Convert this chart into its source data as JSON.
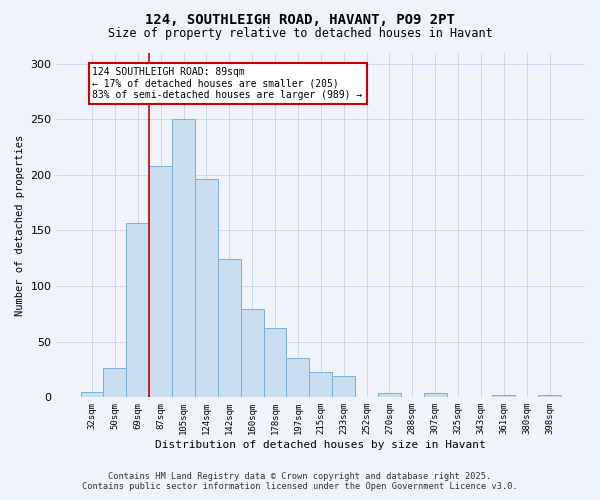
{
  "title": "124, SOUTHLEIGH ROAD, HAVANT, PO9 2PT",
  "subtitle": "Size of property relative to detached houses in Havant",
  "xlabel": "Distribution of detached houses by size in Havant",
  "ylabel": "Number of detached properties",
  "bin_labels": [
    "32sqm",
    "50sqm",
    "69sqm",
    "87sqm",
    "105sqm",
    "124sqm",
    "142sqm",
    "160sqm",
    "178sqm",
    "197sqm",
    "215sqm",
    "233sqm",
    "252sqm",
    "270sqm",
    "288sqm",
    "307sqm",
    "325sqm",
    "343sqm",
    "361sqm",
    "380sqm",
    "398sqm"
  ],
  "bar_heights": [
    5,
    26,
    157,
    208,
    250,
    196,
    124,
    79,
    62,
    35,
    23,
    19,
    0,
    4,
    0,
    4,
    0,
    0,
    2,
    0,
    2
  ],
  "bar_color": "#c9ddf0",
  "bar_edge_color": "#7aafd4",
  "vline_x_index": 3,
  "vline_color": "#cc0000",
  "annotation_title": "124 SOUTHLEIGH ROAD: 89sqm",
  "annotation_line1": "← 17% of detached houses are smaller (205)",
  "annotation_line2": "83% of semi-detached houses are larger (989) →",
  "annotation_box_color": "#ffffff",
  "annotation_box_edge": "#cc0000",
  "ylim": [
    0,
    310
  ],
  "yticks": [
    0,
    50,
    100,
    150,
    200,
    250,
    300
  ],
  "footer_line1": "Contains HM Land Registry data © Crown copyright and database right 2025.",
  "footer_line2": "Contains public sector information licensed under the Open Government Licence v3.0.",
  "bg_color": "#f0f4fa",
  "grid_color": "#c8d8ea"
}
